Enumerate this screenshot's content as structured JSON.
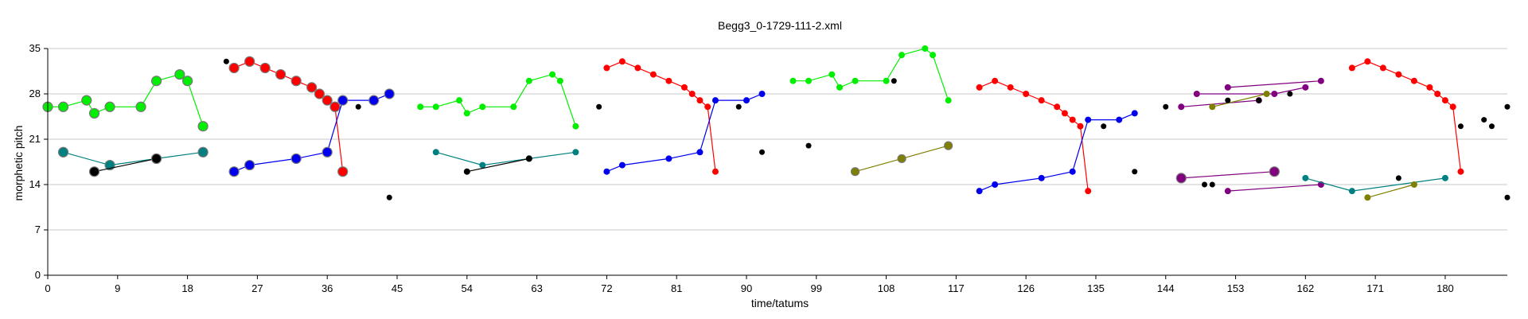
{
  "chart_data": {
    "type": "scatter",
    "title": "Begg3_0-1729-111-2.xml",
    "xlabel": "time/tatums",
    "ylabel": "morphetic pitch",
    "xlim": [
      0,
      188
    ],
    "ylim": [
      0,
      35
    ],
    "xticks": [
      0,
      9,
      18,
      27,
      36,
      45,
      54,
      63,
      72,
      81,
      90,
      99,
      108,
      117,
      126,
      135,
      144,
      153,
      162,
      171,
      180
    ],
    "yticks": [
      0,
      7,
      14,
      21,
      28,
      35
    ],
    "grid": true,
    "series": [
      {
        "color": "#00ee00",
        "marker_size": 6,
        "x": [
          0,
          2,
          5,
          6,
          8,
          12,
          14,
          17,
          18,
          20
        ],
        "y": [
          26,
          26,
          27,
          25,
          26,
          26,
          30,
          31,
          30,
          23
        ]
      },
      {
        "color": "#008080",
        "marker_size": 6,
        "x": [
          2,
          8,
          14,
          20
        ],
        "y": [
          19,
          17,
          18,
          19
        ]
      },
      {
        "color": "#000000",
        "marker_size": 6,
        "x": [
          6,
          14
        ],
        "y": [
          16,
          18
        ]
      },
      {
        "color": "#ff0000",
        "marker_size": 6,
        "x": [
          24,
          26,
          28,
          30,
          32,
          34,
          35,
          36,
          37,
          38
        ],
        "y": [
          32,
          33,
          32,
          31,
          30,
          29,
          28,
          27,
          26,
          16
        ]
      },
      {
        "color": "#0000ee",
        "marker_size": 6,
        "x": [
          24,
          26,
          32,
          36,
          38,
          42,
          44
        ],
        "y": [
          16,
          17,
          18,
          19,
          27,
          27,
          28
        ]
      },
      {
        "color": "#00ee00",
        "marker_size": 4,
        "x": [
          48,
          50,
          53,
          54,
          56,
          60,
          62,
          65,
          66,
          68
        ],
        "y": [
          26,
          26,
          27,
          25,
          26,
          26,
          30,
          31,
          30,
          23
        ]
      },
      {
        "color": "#008080",
        "marker_size": 4,
        "x": [
          50,
          56,
          62,
          68
        ],
        "y": [
          19,
          17,
          18,
          19
        ]
      },
      {
        "color": "#000000",
        "marker_size": 4,
        "x": [
          54,
          62
        ],
        "y": [
          16,
          18
        ]
      },
      {
        "color": "#ff0000",
        "marker_size": 4,
        "x": [
          72,
          74,
          76,
          78,
          80,
          82,
          83,
          84,
          85,
          86
        ],
        "y": [
          32,
          33,
          32,
          31,
          30,
          29,
          28,
          27,
          26,
          16
        ]
      },
      {
        "color": "#0000ee",
        "marker_size": 4,
        "x": [
          72,
          74,
          80,
          84,
          86,
          90,
          92
        ],
        "y": [
          16,
          17,
          18,
          19,
          27,
          27,
          28
        ]
      },
      {
        "color": "#00ee00",
        "marker_size": 4,
        "x": [
          96,
          98,
          101,
          102,
          104,
          108,
          110,
          113,
          114,
          116
        ],
        "y": [
          30,
          30,
          31,
          29,
          30,
          30,
          34,
          35,
          34,
          27
        ]
      },
      {
        "color": "#808000",
        "marker_size": 5,
        "x": [
          104,
          110,
          116
        ],
        "y": [
          16,
          18,
          20
        ]
      },
      {
        "color": "#ff0000",
        "marker_size": 4,
        "x": [
          120,
          122,
          124,
          126,
          128,
          130,
          131,
          132,
          133,
          134
        ],
        "y": [
          29,
          30,
          29,
          28,
          27,
          26,
          25,
          24,
          23,
          13
        ]
      },
      {
        "color": "#0000ee",
        "marker_size": 4,
        "x": [
          120,
          122,
          128,
          132,
          134,
          138,
          140
        ],
        "y": [
          13,
          14,
          15,
          16,
          24,
          24,
          25
        ]
      },
      {
        "color": "#800080",
        "marker_size": 4,
        "x": [
          146,
          156
        ],
        "y": [
          26,
          27
        ]
      },
      {
        "color": "#800080",
        "marker_size": 4,
        "x": [
          148,
          158,
          162
        ],
        "y": [
          28,
          28,
          29
        ]
      },
      {
        "color": "#800080",
        "marker_size": 4,
        "x": [
          152,
          164
        ],
        "y": [
          29,
          30
        ]
      },
      {
        "color": "#808000",
        "marker_size": 4,
        "x": [
          150,
          157
        ],
        "y": [
          26,
          28
        ]
      },
      {
        "color": "#800080",
        "marker_size": 6,
        "x": [
          146,
          158
        ],
        "y": [
          15,
          16
        ]
      },
      {
        "color": "#800080",
        "marker_size": 4,
        "x": [
          152,
          164
        ],
        "y": [
          13,
          14
        ]
      },
      {
        "color": "#008080",
        "marker_size": 4,
        "x": [
          162,
          168,
          180
        ],
        "y": [
          15,
          13,
          15
        ]
      },
      {
        "color": "#808000",
        "marker_size": 4,
        "x": [
          170,
          176
        ],
        "y": [
          12,
          14
        ]
      },
      {
        "color": "#ff0000",
        "marker_size": 4,
        "x": [
          168,
          170,
          172,
          174,
          176,
          178,
          179,
          180,
          181,
          182
        ],
        "y": [
          32,
          33,
          32,
          31,
          30,
          29,
          28,
          27,
          26,
          16
        ]
      }
    ],
    "isolated_points": {
      "color": "#000000",
      "marker_size": 3.5,
      "x": [
        23,
        40,
        44,
        71,
        89,
        92,
        98,
        109,
        136,
        140,
        144,
        149,
        150,
        152,
        156,
        160,
        174,
        182,
        185,
        186,
        188,
        188
      ],
      "y": [
        33,
        26,
        12,
        26,
        26,
        19,
        20,
        30,
        23,
        16,
        26,
        14,
        14,
        27,
        27,
        28,
        15,
        23,
        24,
        23,
        26,
        12
      ]
    }
  }
}
